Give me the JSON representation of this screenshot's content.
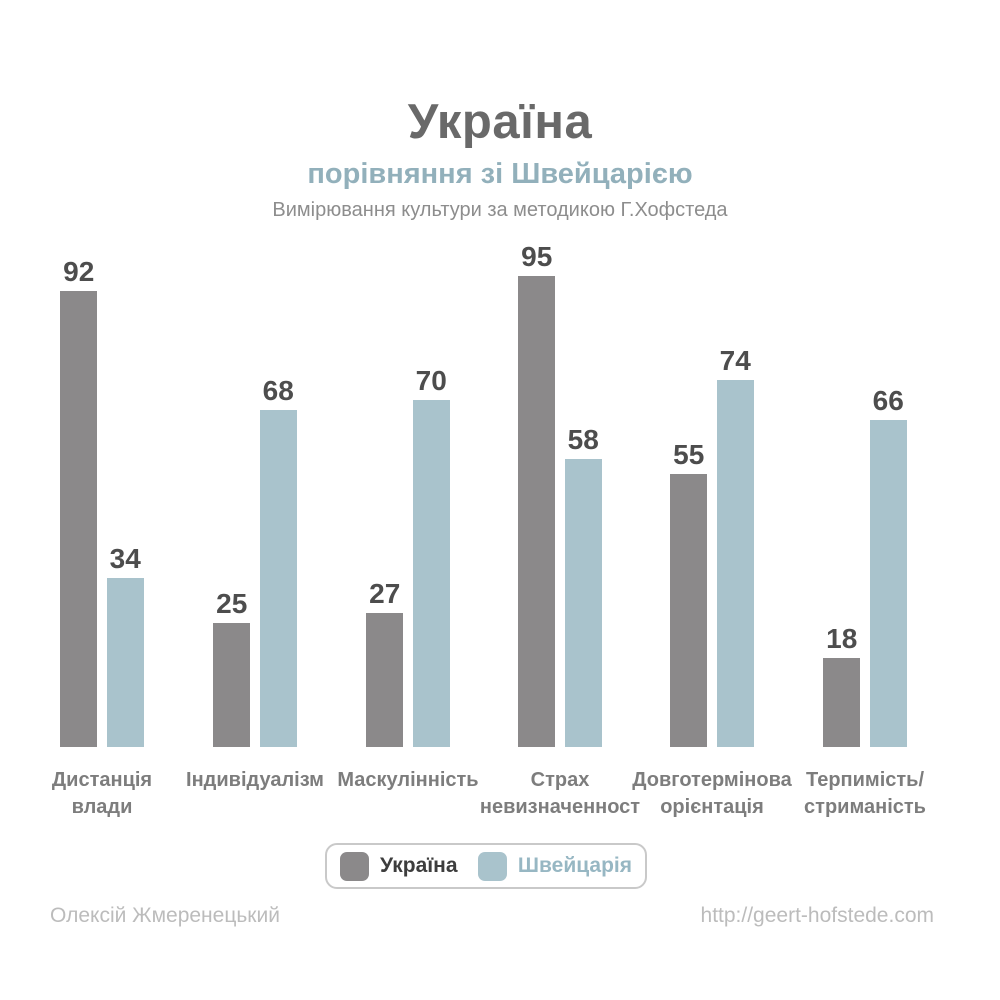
{
  "header": {
    "title": "Україна",
    "subtitle": "порівняння зі Швейцарією",
    "method_line": "Вимірювання культури за методикою Г.Хофстеда",
    "title_color": "#696969",
    "subtitle_color": "#92b0bb",
    "method_color": "#8d8d8d"
  },
  "chart_data": {
    "type": "bar",
    "title": "Україна — порівняння зі Швейцарією",
    "subtitle": "Вимірювання культури за методикою Г.Хофстеда",
    "categories": [
      "Дистанція влади",
      "Індивідуалізм",
      "Маскулінність",
      "Страх невизначенност",
      "Довготермінова орієнтація",
      "Терпимість/ стриманість"
    ],
    "category_lines": [
      [
        "Дистанція",
        "влади"
      ],
      [
        "Індивідуалізм"
      ],
      [
        "Маскулінність"
      ],
      [
        "Страх",
        "невизначенност"
      ],
      [
        "Довготермінова",
        "орієнтація"
      ],
      [
        "Терпимість/",
        "стриманість"
      ]
    ],
    "series": [
      {
        "name": "Україна",
        "color": "#8b898a",
        "values": [
          92,
          25,
          27,
          95,
          55,
          18
        ]
      },
      {
        "name": "Швейцарія",
        "color": "#a9c3cc",
        "values": [
          34,
          68,
          70,
          58,
          74,
          66
        ]
      }
    ],
    "ylim": [
      0,
      100
    ],
    "grid": false,
    "value_labels": true,
    "legend_position": "bottom",
    "value_label_color": "#4d4d4d",
    "category_label_color": "#7d7d7d"
  },
  "legend": {
    "border_color": "#c9c9c9",
    "items": [
      {
        "label": "Україна",
        "swatch_color": "#8b898a",
        "text_color": "#3d3d3d"
      },
      {
        "label": "Швейцарія",
        "swatch_color": "#a9c3cc",
        "text_color": "#97b7c3"
      }
    ]
  },
  "footer": {
    "author": "Олексій Жмеренецький",
    "url": "http://geert-hofstede.com",
    "text_color": "#bcbcbc"
  }
}
